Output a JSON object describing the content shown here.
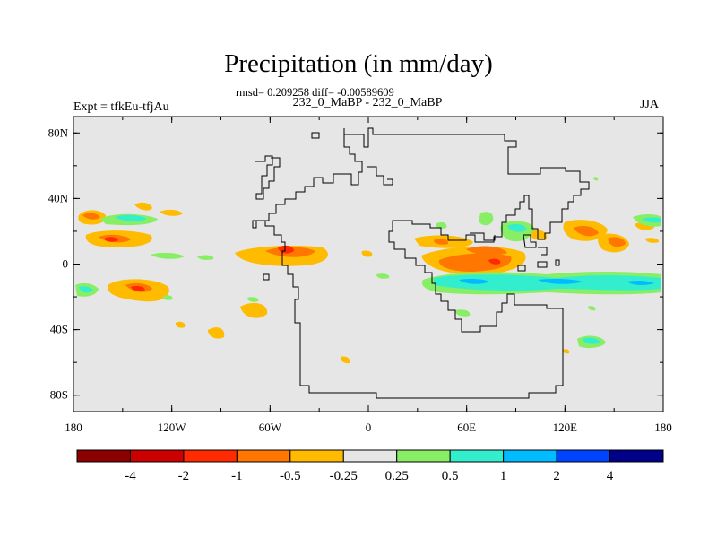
{
  "title": "Precipitation (in mm/day)",
  "stats": "rmsd= 0.209258 diff= -0.00589609",
  "experiment_name": "232_0_MaBP - 232_0_MaBP",
  "expt_label": "Expt = tfkEu-tfjAu",
  "season": "JJA",
  "map": {
    "lon_ticks": [
      "180",
      "120W",
      "60W",
      "0",
      "60E",
      "120E",
      "180"
    ],
    "lat_ticks": [
      "80N",
      "40N",
      "0",
      "40S",
      "80S"
    ],
    "background_color": "#e6e6e6"
  },
  "colorbar": {
    "labels": [
      "-4",
      "-2",
      "-1",
      "-0.5",
      "-0.25",
      "0.25",
      "0.5",
      "1",
      "2",
      "4"
    ],
    "colors": [
      "#8b0000",
      "#cc0000",
      "#ff2a00",
      "#ff7700",
      "#ffbb00",
      "#e6e6e6",
      "#88ee66",
      "#33eecc",
      "#00bbff",
      "#0044ff",
      "#000088"
    ]
  }
}
